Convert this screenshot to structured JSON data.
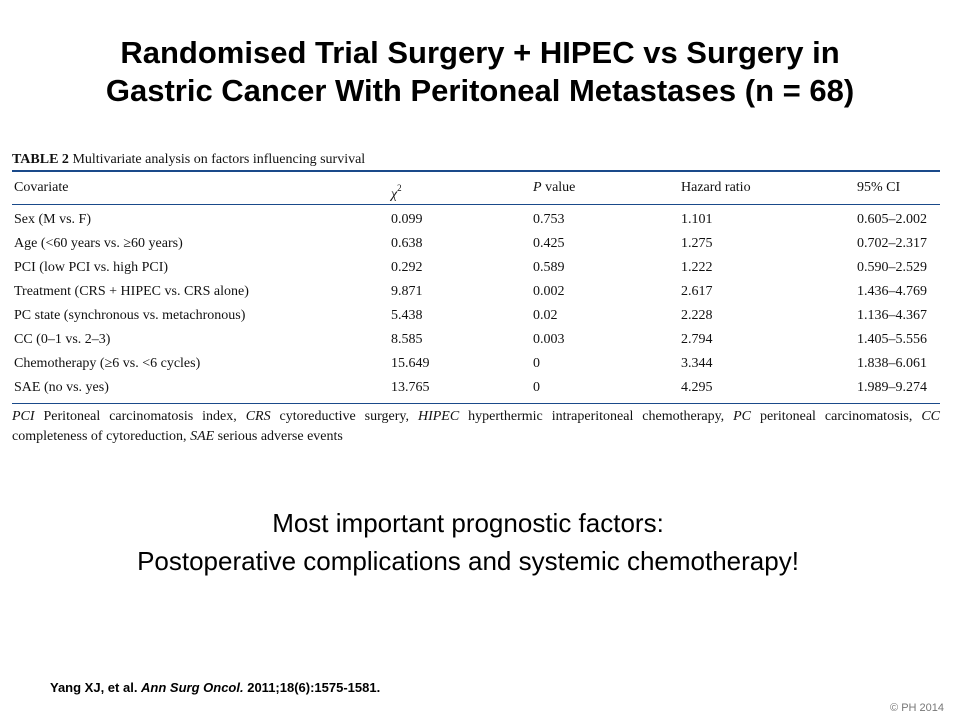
{
  "slide": {
    "title_line1": "Randomised Trial Surgery + HIPEC vs Surgery in",
    "title_line2": "Gastric Cancer With Peritoneal Metastases (n = 68)"
  },
  "table": {
    "number": "TABLE 2",
    "caption": "Multivariate analysis on factors influencing survival",
    "headers": {
      "covariate": "Covariate",
      "chi_symbol": "χ",
      "chi_exp": "2",
      "p_italic": "P",
      "p_rest": " value",
      "hazard": "Hazard ratio",
      "ci": "95% CI"
    },
    "rows": [
      {
        "covariate": "Sex (M vs. F)",
        "chi2": "0.099",
        "p": "0.753",
        "hr": "1.101",
        "ci": "0.605–2.002"
      },
      {
        "covariate": "Age (<60 years vs. ≥60 years)",
        "chi2": "0.638",
        "p": "0.425",
        "hr": "1.275",
        "ci": "0.702–2.317"
      },
      {
        "covariate": "PCI (low PCI vs. high PCI)",
        "chi2": "0.292",
        "p": "0.589",
        "hr": "1.222",
        "ci": "0.590–2.529"
      },
      {
        "covariate": "Treatment (CRS + HIPEC vs. CRS alone)",
        "chi2": "9.871",
        "p": "0.002",
        "hr": "2.617",
        "ci": "1.436–4.769"
      },
      {
        "covariate": "PC state (synchronous vs. metachronous)",
        "chi2": "5.438",
        "p": "0.02",
        "hr": "2.228",
        "ci": "1.136–4.367"
      },
      {
        "covariate": "CC (0–1 vs. 2–3)",
        "chi2": "8.585",
        "p": "0.003",
        "hr": "2.794",
        "ci": "1.405–5.556"
      },
      {
        "covariate": "Chemotherapy (≥6 vs. <6 cycles)",
        "chi2": "15.649",
        "p": "0",
        "hr": "3.344",
        "ci": "1.838–6.061"
      },
      {
        "covariate": "SAE (no vs. yes)",
        "chi2": "13.765",
        "p": "0",
        "hr": "4.295",
        "ci": "1.989–9.274"
      }
    ],
    "footnote": [
      {
        "abbr": "PCI",
        "text": " Peritoneal carcinomatosis index, "
      },
      {
        "abbr": "CRS",
        "text": " cytoreductive surgery, "
      },
      {
        "abbr": "HIPEC",
        "text": " hyperthermic intraperitoneal chemotherapy, "
      },
      {
        "abbr": "PC",
        "text": " peritoneal carcinomatosis, "
      },
      {
        "abbr": "CC",
        "text": " completeness of cytoreduction, "
      },
      {
        "abbr": "SAE",
        "text": " serious adverse events"
      }
    ]
  },
  "message": {
    "line1": "Most important prognostic factors:",
    "line2": "Postoperative complications and systemic chemotherapy!"
  },
  "citation": {
    "authors": "Yang XJ, et al. ",
    "journal": "Ann Surg Oncol.",
    "details": " 2011;18(6):1575-1581."
  },
  "copyright": "© PH 2014",
  "colors": {
    "rule": "#1a4a8a"
  }
}
